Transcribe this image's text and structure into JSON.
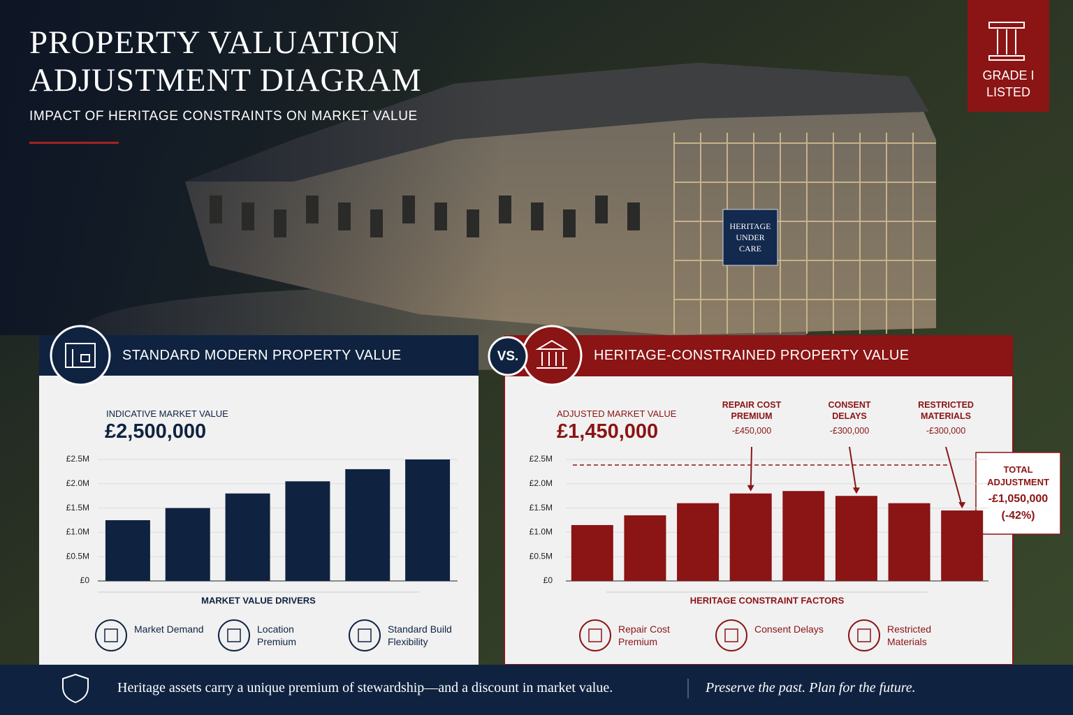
{
  "header": {
    "title": "PROPERTY VALUATION ADJUSTMENT DIAGRAM",
    "subtitle": "IMPACT OF HERITAGE CONSTRAINTS ON MARKET VALUE"
  },
  "badge": "GRADE I LISTED",
  "photo_sign": "HERITAGE UNDER CARE",
  "vs": "VS.",
  "chart_data": [
    {
      "type": "bar",
      "title": "STANDARD MODERN PROPERTY VALUE",
      "value_title": "INDICATIVE MARKET VALUE",
      "value_label": "£2,500,000",
      "categories": [
        null,
        null,
        null,
        null,
        null,
        null
      ],
      "values": [
        1250000,
        1500000,
        1800000,
        2050000,
        2300000,
        2500000
      ],
      "color": "#0f2340",
      "ylim": [
        0,
        2500000
      ],
      "yticks": [
        {
          "value": 0,
          "label": "£0"
        },
        {
          "value": 500000,
          "label": "£0.5M"
        },
        {
          "value": 1000000,
          "label": "£1.0M"
        },
        {
          "value": 1500000,
          "label": "£1.5M"
        },
        {
          "value": 2000000,
          "label": "£2.0M"
        },
        {
          "value": 2500000,
          "label": "£2.5M"
        }
      ],
      "grid": true,
      "x_label": "MARKET VALUE DRIVERS",
      "factors": [
        "Market Demand",
        "Location Premium",
        "Standard Build Flexibility"
      ]
    },
    {
      "type": "bar",
      "title": "HERITAGE-CONSTRAINED PROPERTY VALUE",
      "value_title": "ADJUSTED MARKET VALUE",
      "value_label": "£1,450,000",
      "categories": [
        null,
        null,
        null,
        null,
        null,
        null,
        null,
        null
      ],
      "values": [
        1150000,
        1350000,
        1600000,
        1800000,
        1850000,
        1750000,
        1600000,
        1450000
      ],
      "color": "#8b1414",
      "ylim": [
        0,
        2500000
      ],
      "yticks": [
        {
          "value": 0,
          "label": "£0"
        },
        {
          "value": 500000,
          "label": "£0.5M"
        },
        {
          "value": 1000000,
          "label": "£1.0M"
        },
        {
          "value": 1500000,
          "label": "£1.5M"
        },
        {
          "value": 2000000,
          "label": "£2.0M"
        },
        {
          "value": 2500000,
          "label": "£2.5M"
        }
      ],
      "grid": true,
      "x_label": "HERITAGE CONSTRAINT FACTORS",
      "factors": [
        "Repair Cost Premium",
        "Consent Delays",
        "Restricted Materials"
      ],
      "annotations": [
        {
          "text": "REPAIR COST PREMIUM",
          "amount": "-£450,000"
        },
        {
          "text": "CONSENT DELAYS",
          "amount": "-£300,000"
        },
        {
          "text": "RESTRICTED MATERIALS",
          "amount": "-£300,000"
        }
      ],
      "total_adjustment": {
        "title": "TOTAL ADJUSTMENT",
        "amount": "-£1,050,000",
        "percent": "(-42%)"
      }
    }
  ],
  "footer": {
    "statement": "Heritage assets carry a unique premium of stewardship—and a discount in market value.",
    "tagline": "Preserve the past. Plan for the future."
  }
}
